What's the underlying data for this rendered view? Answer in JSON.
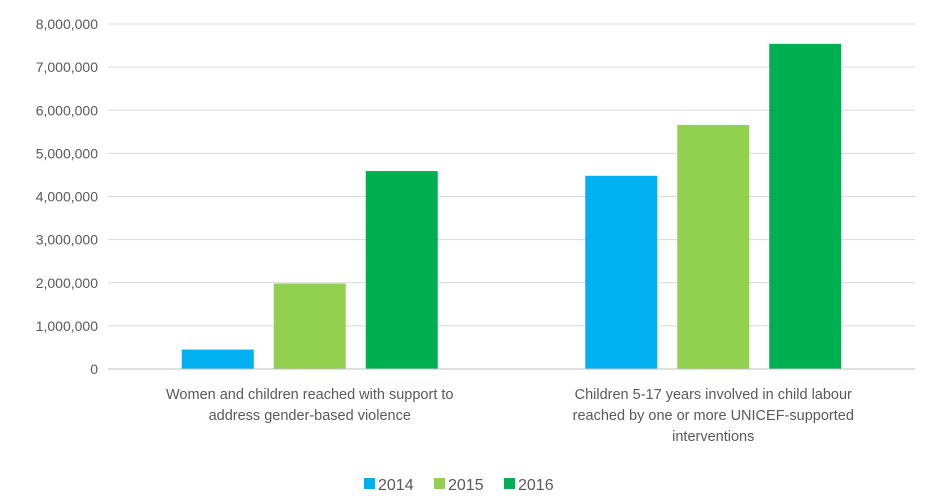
{
  "chart_data": {
    "type": "bar",
    "title": "",
    "xlabel": "",
    "ylabel": "",
    "ylim": [
      0,
      8000000
    ],
    "yticks": [
      0,
      1000000,
      2000000,
      3000000,
      4000000,
      5000000,
      6000000,
      7000000,
      8000000
    ],
    "ytick_labels": [
      "0",
      "1,000,000",
      "2,000,000",
      "3,000,000",
      "4,000,000",
      "5,000,000",
      "6,000,000",
      "7,000,000",
      "8,000,000"
    ],
    "grid": true,
    "legend_position": "bottom",
    "categories": [
      [
        "Women and children reached with support to",
        "address gender-based violence"
      ],
      [
        "Children 5-17 years involved in child labour",
        "reached by one or more UNICEF-supported",
        "interventions"
      ]
    ],
    "series": [
      {
        "name": "2014",
        "color": "#00b0f0",
        "values": [
          450000,
          4480000
        ]
      },
      {
        "name": "2015",
        "color": "#92d050",
        "values": [
          1980000,
          5660000
        ]
      },
      {
        "name": "2016",
        "color": "#00b050",
        "values": [
          4590000,
          7540000
        ]
      }
    ]
  }
}
